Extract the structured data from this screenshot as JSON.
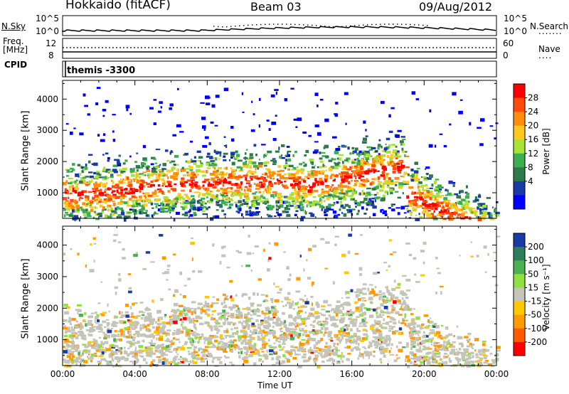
{
  "header": {
    "title": "Hokkaido (fitACF)",
    "beam": "Beam 03",
    "date": "09/Aug/2012"
  },
  "noise_panel": {
    "left_label": "N.Sky",
    "right_label": "N.Search",
    "left_ticks": [
      "10^5",
      "10^0"
    ],
    "right_ticks": [
      "10^5",
      "10^0"
    ]
  },
  "freq_panel": {
    "left_label_1": "Freq.",
    "left_label_2": "[MHz]",
    "right_label": "Nave",
    "left_ticks": [
      "12",
      "8"
    ],
    "right_ticks": [
      "60",
      "0"
    ]
  },
  "cpid_panel": {
    "label": "CPID",
    "value": "themis -3300"
  },
  "chart_data": [
    {
      "type": "heatmap",
      "name": "power",
      "ylabel": "Slant Range [km]",
      "xlabel": "",
      "xlim": [
        0,
        24
      ],
      "ylim": [
        180,
        4600
      ],
      "y_ticks": [
        "1000",
        "2000",
        "3000",
        "4000"
      ],
      "y_tick_values": [
        1000,
        2000,
        3000,
        4000
      ],
      "colorbar_label": "Power [dB]",
      "colorbar_ticks": [
        "28",
        "24",
        "20",
        "16",
        "12",
        "8",
        "4"
      ],
      "colorbar_levels": [
        0,
        4,
        8,
        12,
        16,
        20,
        24,
        28,
        32
      ],
      "colors": [
        "#0000ff",
        "#1a3aa8",
        "#2f7a4a",
        "#3dae50",
        "#a8e236",
        "#ffc81e",
        "#ff8c0a",
        "#ff4a0a",
        "#ff0000"
      ]
    },
    {
      "type": "heatmap",
      "name": "velocity",
      "ylabel": "Slant Range [km]",
      "xlabel": "Time UT",
      "xlim": [
        0,
        24
      ],
      "ylim": [
        180,
        4600
      ],
      "x_ticks": [
        "00:00",
        "04:00",
        "08:00",
        "12:00",
        "16:00",
        "20:00",
        "00:00"
      ],
      "x_tick_values": [
        0,
        4,
        8,
        12,
        16,
        20,
        24
      ],
      "y_ticks": [
        "1000",
        "2000",
        "3000",
        "4000"
      ],
      "y_tick_values": [
        1000,
        2000,
        3000,
        4000
      ],
      "colorbar_label": "Velocity [m s⁻¹]",
      "colorbar_ticks": [
        "200",
        "100",
        "50",
        "15",
        "-15",
        "-50",
        "-100",
        "-200"
      ],
      "colors": [
        "#ff0000",
        "#ff5a00",
        "#ff9a00",
        "#ffc800",
        "#c4c4b8",
        "#8fe040",
        "#4caf50",
        "#2e7d5b",
        "#1a3aa8"
      ]
    }
  ]
}
